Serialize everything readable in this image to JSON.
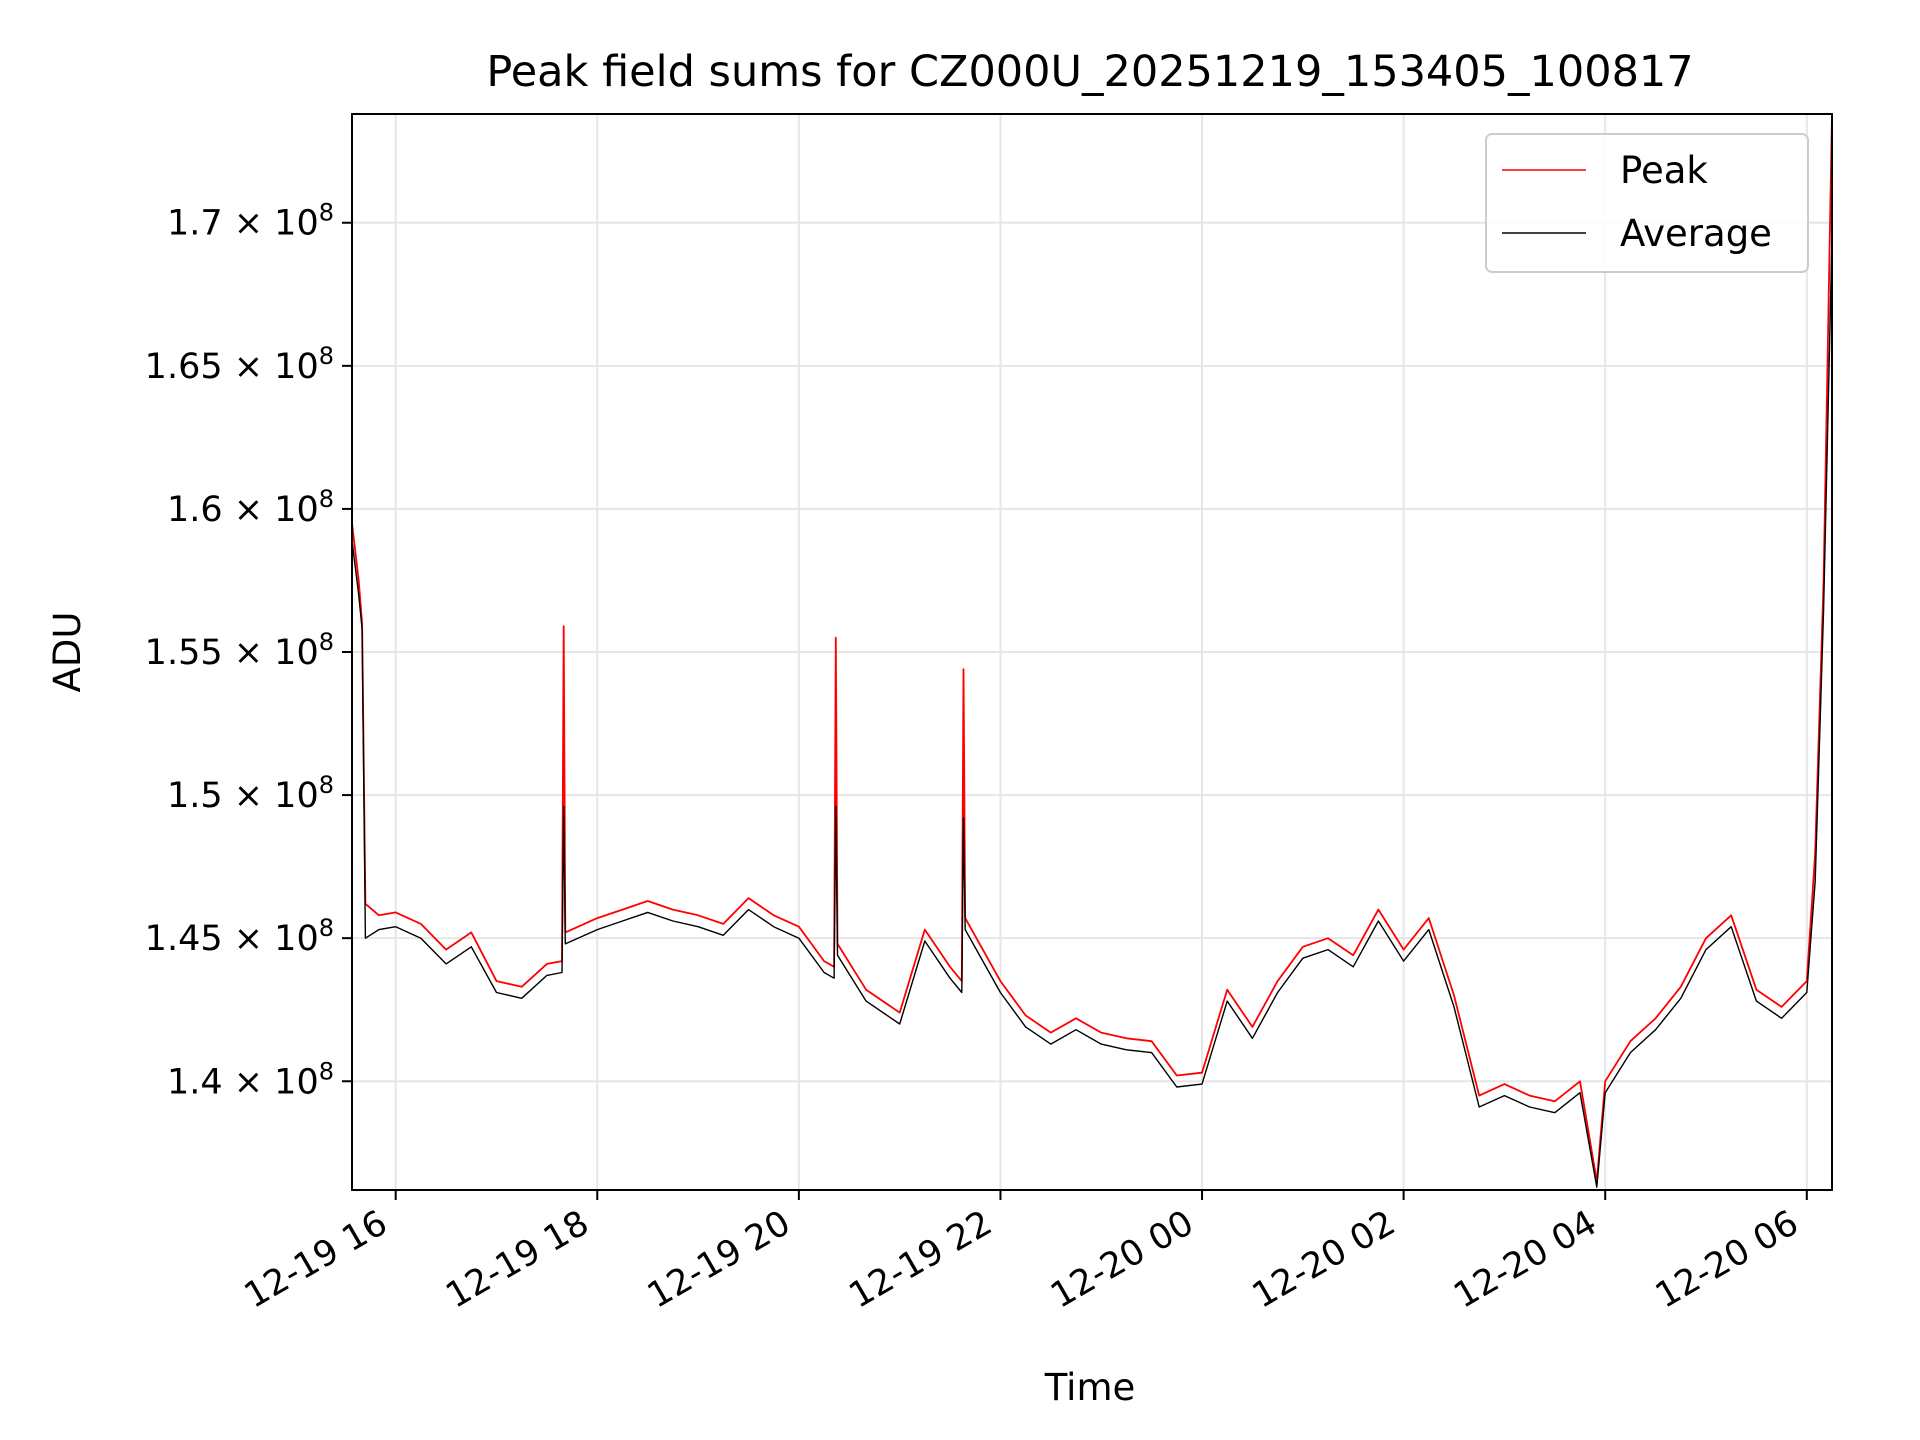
{
  "chart_data": {
    "type": "line",
    "title": "Peak field sums for CZ000U_20251219_153405_100817",
    "xlabel": "Time",
    "ylabel": "ADU",
    "x_unit": "datetime",
    "xlim": [
      "2025-12-19 15:34",
      "2025-12-20 06:15"
    ],
    "ylim": [
      136200000,
      173800000
    ],
    "x_ticks": [
      {
        "value": "2025-12-19 16:00",
        "label": "12-19 16"
      },
      {
        "value": "2025-12-19 18:00",
        "label": "12-19 18"
      },
      {
        "value": "2025-12-19 20:00",
        "label": "12-19 20"
      },
      {
        "value": "2025-12-19 22:00",
        "label": "12-19 22"
      },
      {
        "value": "2025-12-20 00:00",
        "label": "12-20 00"
      },
      {
        "value": "2025-12-20 02:00",
        "label": "12-20 02"
      },
      {
        "value": "2025-12-20 04:00",
        "label": "12-20 04"
      },
      {
        "value": "2025-12-20 06:00",
        "label": "12-20 06"
      }
    ],
    "y_ticks": [
      {
        "value": 140000000,
        "mantissa": "1.4",
        "exp": "8"
      },
      {
        "value": 145000000,
        "mantissa": "1.45",
        "exp": "8"
      },
      {
        "value": 150000000,
        "mantissa": "1.5",
        "exp": "8"
      },
      {
        "value": 155000000,
        "mantissa": "1.55",
        "exp": "8"
      },
      {
        "value": 160000000,
        "mantissa": "1.6",
        "exp": "8"
      },
      {
        "value": 165000000,
        "mantissa": "1.65",
        "exp": "8"
      },
      {
        "value": 170000000,
        "mantissa": "1.7",
        "exp": "8"
      }
    ],
    "grid": true,
    "legend_position": "top-right",
    "series": [
      {
        "name": "Peak",
        "color": "#ff0000",
        "points": [
          [
            "2025-12-19 15:34",
            159500000
          ],
          [
            "2025-12-19 15:38",
            157500000
          ],
          [
            "2025-12-19 15:40",
            156000000
          ],
          [
            "2025-12-19 15:42",
            146200000
          ],
          [
            "2025-12-19 15:50",
            145800000
          ],
          [
            "2025-12-19 16:00",
            145900000
          ],
          [
            "2025-12-19 16:15",
            145500000
          ],
          [
            "2025-12-19 16:30",
            144600000
          ],
          [
            "2025-12-19 16:45",
            145200000
          ],
          [
            "2025-12-19 17:00",
            143500000
          ],
          [
            "2025-12-19 17:15",
            143300000
          ],
          [
            "2025-12-19 17:30",
            144100000
          ],
          [
            "2025-12-19 17:39",
            144200000
          ],
          [
            "2025-12-19 17:40",
            155900000
          ],
          [
            "2025-12-19 17:41",
            145200000
          ],
          [
            "2025-12-19 18:00",
            145700000
          ],
          [
            "2025-12-19 18:15",
            146000000
          ],
          [
            "2025-12-19 18:30",
            146300000
          ],
          [
            "2025-12-19 18:45",
            146000000
          ],
          [
            "2025-12-19 19:00",
            145800000
          ],
          [
            "2025-12-19 19:15",
            145500000
          ],
          [
            "2025-12-19 19:30",
            146400000
          ],
          [
            "2025-12-19 19:45",
            145800000
          ],
          [
            "2025-12-19 20:00",
            145400000
          ],
          [
            "2025-12-19 20:15",
            144200000
          ],
          [
            "2025-12-19 20:21",
            144000000
          ],
          [
            "2025-12-19 20:22",
            155500000
          ],
          [
            "2025-12-19 20:23",
            144800000
          ],
          [
            "2025-12-19 20:40",
            143200000
          ],
          [
            "2025-12-19 21:00",
            142400000
          ],
          [
            "2025-12-19 21:15",
            145300000
          ],
          [
            "2025-12-19 21:30",
            144000000
          ],
          [
            "2025-12-19 21:37",
            143500000
          ],
          [
            "2025-12-19 21:38",
            154400000
          ],
          [
            "2025-12-19 21:39",
            145700000
          ],
          [
            "2025-12-19 22:00",
            143500000
          ],
          [
            "2025-12-19 22:15",
            142300000
          ],
          [
            "2025-12-19 22:30",
            141700000
          ],
          [
            "2025-12-19 22:45",
            142200000
          ],
          [
            "2025-12-19 23:00",
            141700000
          ],
          [
            "2025-12-19 23:15",
            141500000
          ],
          [
            "2025-12-19 23:30",
            141400000
          ],
          [
            "2025-12-19 23:45",
            140200000
          ],
          [
            "2025-12-20 00:00",
            140300000
          ],
          [
            "2025-12-20 00:15",
            143200000
          ],
          [
            "2025-12-20 00:30",
            141900000
          ],
          [
            "2025-12-20 00:45",
            143500000
          ],
          [
            "2025-12-20 01:00",
            144700000
          ],
          [
            "2025-12-20 01:15",
            145000000
          ],
          [
            "2025-12-20 01:30",
            144400000
          ],
          [
            "2025-12-20 01:45",
            146000000
          ],
          [
            "2025-12-20 02:00",
            144600000
          ],
          [
            "2025-12-20 02:15",
            145700000
          ],
          [
            "2025-12-20 02:30",
            143000000
          ],
          [
            "2025-12-20 02:45",
            139500000
          ],
          [
            "2025-12-20 03:00",
            139900000
          ],
          [
            "2025-12-20 03:15",
            139500000
          ],
          [
            "2025-12-20 03:30",
            139300000
          ],
          [
            "2025-12-20 03:45",
            140000000
          ],
          [
            "2025-12-20 03:55",
            136500000
          ],
          [
            "2025-12-20 04:00",
            140000000
          ],
          [
            "2025-12-20 04:15",
            141400000
          ],
          [
            "2025-12-20 04:30",
            142200000
          ],
          [
            "2025-12-20 04:45",
            143300000
          ],
          [
            "2025-12-20 05:00",
            145000000
          ],
          [
            "2025-12-20 05:15",
            145800000
          ],
          [
            "2025-12-20 05:30",
            143200000
          ],
          [
            "2025-12-20 05:45",
            142600000
          ],
          [
            "2025-12-20 06:00",
            143500000
          ],
          [
            "2025-12-20 06:05",
            148000000
          ],
          [
            "2025-12-20 06:10",
            157500000
          ],
          [
            "2025-12-20 06:15",
            173800000
          ]
        ]
      },
      {
        "name": "Average",
        "color": "#000000",
        "points": [
          [
            "2025-12-19 15:34",
            158900000
          ],
          [
            "2025-12-19 15:38",
            157000000
          ],
          [
            "2025-12-19 15:40",
            155800000
          ],
          [
            "2025-12-19 15:42",
            145000000
          ],
          [
            "2025-12-19 15:50",
            145300000
          ],
          [
            "2025-12-19 16:00",
            145400000
          ],
          [
            "2025-12-19 16:15",
            145000000
          ],
          [
            "2025-12-19 16:30",
            144100000
          ],
          [
            "2025-12-19 16:45",
            144700000
          ],
          [
            "2025-12-19 17:00",
            143100000
          ],
          [
            "2025-12-19 17:15",
            142900000
          ],
          [
            "2025-12-19 17:30",
            143700000
          ],
          [
            "2025-12-19 17:39",
            143800000
          ],
          [
            "2025-12-19 17:40",
            149600000
          ],
          [
            "2025-12-19 17:41",
            144800000
          ],
          [
            "2025-12-19 18:00",
            145300000
          ],
          [
            "2025-12-19 18:15",
            145600000
          ],
          [
            "2025-12-19 18:30",
            145900000
          ],
          [
            "2025-12-19 18:45",
            145600000
          ],
          [
            "2025-12-19 19:00",
            145400000
          ],
          [
            "2025-12-19 19:15",
            145100000
          ],
          [
            "2025-12-19 19:30",
            146000000
          ],
          [
            "2025-12-19 19:45",
            145400000
          ],
          [
            "2025-12-19 20:00",
            145000000
          ],
          [
            "2025-12-19 20:15",
            143800000
          ],
          [
            "2025-12-19 20:21",
            143600000
          ],
          [
            "2025-12-19 20:22",
            149600000
          ],
          [
            "2025-12-19 20:23",
            144400000
          ],
          [
            "2025-12-19 20:40",
            142800000
          ],
          [
            "2025-12-19 21:00",
            142000000
          ],
          [
            "2025-12-19 21:15",
            144900000
          ],
          [
            "2025-12-19 21:30",
            143600000
          ],
          [
            "2025-12-19 21:37",
            143100000
          ],
          [
            "2025-12-19 21:38",
            149200000
          ],
          [
            "2025-12-19 21:39",
            145300000
          ],
          [
            "2025-12-19 22:00",
            143100000
          ],
          [
            "2025-12-19 22:15",
            141900000
          ],
          [
            "2025-12-19 22:30",
            141300000
          ],
          [
            "2025-12-19 22:45",
            141800000
          ],
          [
            "2025-12-19 23:00",
            141300000
          ],
          [
            "2025-12-19 23:15",
            141100000
          ],
          [
            "2025-12-19 23:30",
            141000000
          ],
          [
            "2025-12-19 23:45",
            139800000
          ],
          [
            "2025-12-20 00:00",
            139900000
          ],
          [
            "2025-12-20 00:15",
            142800000
          ],
          [
            "2025-12-20 00:30",
            141500000
          ],
          [
            "2025-12-20 00:45",
            143100000
          ],
          [
            "2025-12-20 01:00",
            144300000
          ],
          [
            "2025-12-20 01:15",
            144600000
          ],
          [
            "2025-12-20 01:30",
            144000000
          ],
          [
            "2025-12-20 01:45",
            145600000
          ],
          [
            "2025-12-20 02:00",
            144200000
          ],
          [
            "2025-12-20 02:15",
            145300000
          ],
          [
            "2025-12-20 02:30",
            142600000
          ],
          [
            "2025-12-20 02:45",
            139100000
          ],
          [
            "2025-12-20 03:00",
            139500000
          ],
          [
            "2025-12-20 03:15",
            139100000
          ],
          [
            "2025-12-20 03:30",
            138900000
          ],
          [
            "2025-12-20 03:45",
            139600000
          ],
          [
            "2025-12-20 03:55",
            136300000
          ],
          [
            "2025-12-20 04:00",
            139600000
          ],
          [
            "2025-12-20 04:15",
            141000000
          ],
          [
            "2025-12-20 04:30",
            141800000
          ],
          [
            "2025-12-20 04:45",
            142900000
          ],
          [
            "2025-12-20 05:00",
            144600000
          ],
          [
            "2025-12-20 05:15",
            145400000
          ],
          [
            "2025-12-20 05:30",
            142800000
          ],
          [
            "2025-12-20 05:45",
            142200000
          ],
          [
            "2025-12-20 06:00",
            143100000
          ],
          [
            "2025-12-20 06:05",
            147000000
          ],
          [
            "2025-12-20 06:10",
            156500000
          ],
          [
            "2025-12-20 06:15",
            169500000
          ]
        ]
      }
    ]
  }
}
